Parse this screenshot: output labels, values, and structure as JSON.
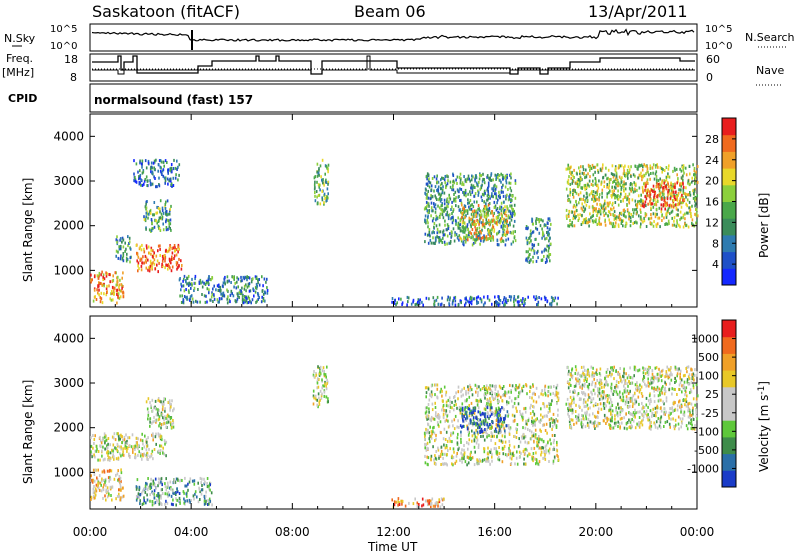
{
  "header": {
    "station": "Saskatoon (fitACF)",
    "beam": "Beam 06",
    "date": "13/Apr/2011"
  },
  "top_panels": {
    "nsky_label": "N.Sky",
    "nsky_ticks": [
      "10^5",
      "10^0"
    ],
    "nsearch_label": "N.Search",
    "nsearch_ticks": [
      "10^5",
      "10^0"
    ],
    "freq_label_1": "Freq.",
    "freq_label_2": "[MHz]",
    "freq_ticks": [
      "18",
      "8"
    ],
    "nave_label": "Nave",
    "nave_ticks": [
      "60",
      "0"
    ],
    "cpid_label": "CPID",
    "cpid_value": "normalsound (fast) 157"
  },
  "chart_data": [
    {
      "type": "heatmap",
      "name": "power",
      "ylabel": "Slant Range [km]",
      "ylim": [
        180,
        4500
      ],
      "yticks": [
        "1000",
        "2000",
        "3000",
        "4000"
      ],
      "xlim": [
        0,
        24
      ],
      "colorbar": {
        "label": "Power [dB]",
        "ticks": [
          "4",
          "8",
          "12",
          "16",
          "20",
          "24",
          "28"
        ],
        "colors": [
          "#1428ff",
          "#1e50c8",
          "#2e7bb0",
          "#3a8c5a",
          "#4aa84a",
          "#8ccf3c",
          "#e8d82a",
          "#f0a028",
          "#f06a1e",
          "#e81e1e"
        ]
      },
      "scatter_regions": [
        {
          "t0": 0.0,
          "t1": 1.3,
          "r0": 300,
          "r1": 1000,
          "level": 0.75
        },
        {
          "t0": 1.0,
          "t1": 1.6,
          "r0": 1200,
          "r1": 1800,
          "level": 0.35
        },
        {
          "t0": 1.8,
          "t1": 3.6,
          "r0": 1000,
          "r1": 1600,
          "level": 0.85
        },
        {
          "t0": 2.1,
          "t1": 3.2,
          "r0": 1900,
          "r1": 2600,
          "level": 0.4
        },
        {
          "t0": 1.7,
          "t1": 3.5,
          "r0": 2900,
          "r1": 3500,
          "level": 0.25
        },
        {
          "t0": 3.5,
          "t1": 7.0,
          "r0": 300,
          "r1": 900,
          "level": 0.3
        },
        {
          "t0": 8.8,
          "t1": 9.4,
          "r0": 2500,
          "r1": 3500,
          "level": 0.45
        },
        {
          "t0": 11.9,
          "t1": 18.5,
          "r0": 250,
          "r1": 450,
          "level": 0.2
        },
        {
          "t0": 13.2,
          "t1": 16.8,
          "r0": 1600,
          "r1": 3200,
          "level": 0.35
        },
        {
          "t0": 14.6,
          "t1": 16.5,
          "r0": 1700,
          "r1": 2500,
          "level": 0.65
        },
        {
          "t0": 17.2,
          "t1": 18.2,
          "r0": 1200,
          "r1": 2200,
          "level": 0.35
        },
        {
          "t0": 18.8,
          "t1": 24.0,
          "r0": 2000,
          "r1": 3400,
          "level": 0.55
        },
        {
          "t0": 21.8,
          "t1": 23.5,
          "r0": 2400,
          "r1": 3000,
          "level": 0.85
        }
      ]
    },
    {
      "type": "heatmap",
      "name": "velocity",
      "ylabel": "Slant Range [km]",
      "ylim": [
        180,
        4500
      ],
      "yticks": [
        "1000",
        "2000",
        "3000",
        "4000"
      ],
      "xlim": [
        0,
        24
      ],
      "xticks": [
        "00:00",
        "04:00",
        "08:00",
        "12:00",
        "16:00",
        "20:00",
        "00:00"
      ],
      "xlabel": "Time UT",
      "colorbar": {
        "label": "Velocity [m s^-1]",
        "ticks": [
          "1000",
          "500",
          "100",
          "25",
          "-25",
          "-100",
          "-500",
          "-1000"
        ],
        "colors": [
          "#1a3cc8",
          "#2a6fa8",
          "#3e8c4a",
          "#5ec83a",
          "#c8c8c8",
          "#c8c8c8",
          "#e8c828",
          "#f0a028",
          "#f06a1e",
          "#e81e1e"
        ]
      },
      "scatter_regions": [
        {
          "t0": 0.0,
          "t1": 1.3,
          "r0": 400,
          "r1": 1100,
          "level": 0.6
        },
        {
          "t0": 0.0,
          "t1": 3.0,
          "r0": 1300,
          "r1": 1900,
          "level": 0.5
        },
        {
          "t0": 1.8,
          "t1": 4.8,
          "r0": 300,
          "r1": 900,
          "level": 0.3
        },
        {
          "t0": 2.2,
          "t1": 3.3,
          "r0": 2000,
          "r1": 2700,
          "level": 0.5
        },
        {
          "t0": 8.8,
          "t1": 9.4,
          "r0": 2500,
          "r1": 3400,
          "level": 0.5
        },
        {
          "t0": 11.9,
          "t1": 14.0,
          "r0": 250,
          "r1": 450,
          "level": 0.75
        },
        {
          "t0": 13.2,
          "t1": 18.5,
          "r0": 1200,
          "r1": 3000,
          "level": 0.5
        },
        {
          "t0": 14.6,
          "t1": 16.5,
          "r0": 1900,
          "r1": 2500,
          "level": 0.1
        },
        {
          "t0": 18.8,
          "t1": 24.0,
          "r0": 2000,
          "r1": 3400,
          "level": 0.5
        }
      ]
    }
  ]
}
